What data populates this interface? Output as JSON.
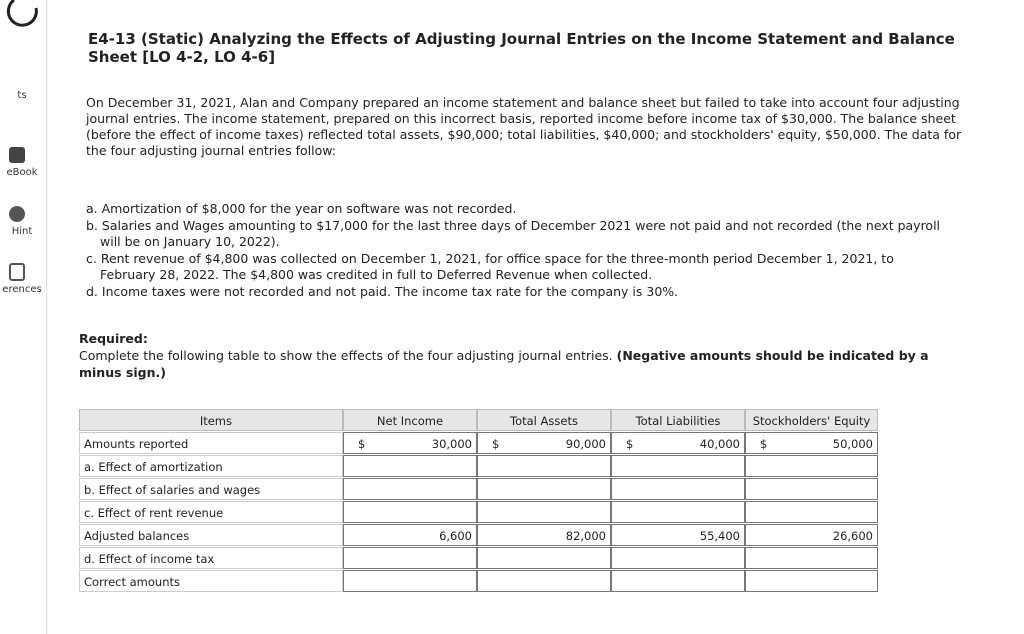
{
  "sidebar": {
    "items": [
      "ts",
      "eBook",
      "Hint",
      "erences"
    ]
  },
  "header": {
    "title": "E4-13 (Static) Analyzing the Effects of Adjusting Journal Entries on the Income Statement and Balance Sheet [LO 4-2, LO 4-6]"
  },
  "intro": "On December 31, 2021, Alan and Company prepared an income statement and balance sheet but failed to take into account four adjusting journal entries. The income statement, prepared on this incorrect basis, reported income before income tax of $30,000. The balance sheet (before the effect of income taxes) reflected total assets, $90,000; total liabilities, $40,000; and stockholders' equity, $50,000. The data for the four adjusting journal entries follow:",
  "entries": [
    "a. Amortization of $8,000 for the year on software was not recorded.",
    "b. Salaries and Wages amounting to $17,000 for the last three days of December 2021 were not paid and not recorded (the next payroll will be on January 10, 2022).",
    "c. Rent revenue of $4,800 was collected on December 1, 2021, for office space for the three-month period December 1, 2021, to February 28, 2022. The $4,800 was credited in full to Deferred Revenue when collected.",
    "d. Income taxes were not recorded and not paid. The income tax rate for the company is 30%."
  ],
  "required": {
    "label": "Required:",
    "text": "Complete the following table to show the effects of the four adjusting journal entries.",
    "note": "(Negative amounts should be indicated by a minus sign.)"
  },
  "table": {
    "headers": [
      "Items",
      "Net Income",
      "Total Assets",
      "Total Liabilities",
      "Stockholders' Equity"
    ],
    "currency": "$",
    "rows": [
      {
        "label": "Amounts reported",
        "values": [
          "30,000",
          "90,000",
          "40,000",
          "50,000"
        ]
      },
      {
        "label": "a. Effect of amortization"
      },
      {
        "label": "b. Effect of salaries and wages"
      },
      {
        "label": "c. Effect of rent revenue"
      },
      {
        "label": "Adjusted balances",
        "values": [
          "6,600",
          "82,000",
          "55,400",
          "26,600"
        ]
      },
      {
        "label": "d. Effect of income tax"
      },
      {
        "label": "Correct amounts"
      }
    ]
  }
}
